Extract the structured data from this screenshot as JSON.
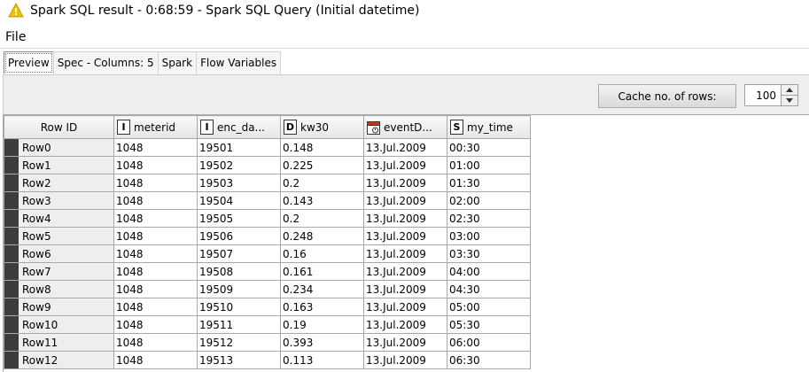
{
  "window": {
    "title": "Spark SQL result - 0:68:59 - Spark SQL Query (Initial datetime)",
    "title_icon": "warning-triangle-icon",
    "title_icon_color": "#f0c000"
  },
  "menu": {
    "file": "File"
  },
  "tabs": [
    {
      "label": "Preview",
      "active": true
    },
    {
      "label": "Spec - Columns: 5",
      "active": false
    },
    {
      "label": "Spark",
      "active": false
    },
    {
      "label": "Flow Variables",
      "active": false
    }
  ],
  "toolbar": {
    "cache_label": "Cache no. of rows:",
    "cache_value": "100"
  },
  "table": {
    "row_id_header": "Row ID",
    "columns": [
      {
        "label": "meterid",
        "type_glyph": "I",
        "type_icon": "integer-type-icon"
      },
      {
        "label": "enc_da...",
        "type_glyph": "I",
        "type_icon": "integer-type-icon"
      },
      {
        "label": "kw30",
        "type_glyph": "D",
        "type_icon": "double-type-icon"
      },
      {
        "label": "eventD...",
        "type_glyph": "",
        "type_icon": "calendar-type-icon"
      },
      {
        "label": "my_time",
        "type_glyph": "S",
        "type_icon": "string-type-icon"
      }
    ],
    "rows": [
      {
        "id": "Row0",
        "cells": [
          "1048",
          "19501",
          "0.148",
          "13.Jul.2009",
          "00:30"
        ]
      },
      {
        "id": "Row1",
        "cells": [
          "1048",
          "19502",
          "0.225",
          "13.Jul.2009",
          "01:00"
        ]
      },
      {
        "id": "Row2",
        "cells": [
          "1048",
          "19503",
          "0.2",
          "13.Jul.2009",
          "01:30"
        ]
      },
      {
        "id": "Row3",
        "cells": [
          "1048",
          "19504",
          "0.143",
          "13.Jul.2009",
          "02:00"
        ]
      },
      {
        "id": "Row4",
        "cells": [
          "1048",
          "19505",
          "0.2",
          "13.Jul.2009",
          "02:30"
        ]
      },
      {
        "id": "Row5",
        "cells": [
          "1048",
          "19506",
          "0.248",
          "13.Jul.2009",
          "03:00"
        ]
      },
      {
        "id": "Row6",
        "cells": [
          "1048",
          "19507",
          "0.16",
          "13.Jul.2009",
          "03:30"
        ]
      },
      {
        "id": "Row7",
        "cells": [
          "1048",
          "19508",
          "0.161",
          "13.Jul.2009",
          "04:00"
        ]
      },
      {
        "id": "Row8",
        "cells": [
          "1048",
          "19509",
          "0.234",
          "13.Jul.2009",
          "04:30"
        ]
      },
      {
        "id": "Row9",
        "cells": [
          "1048",
          "19510",
          "0.163",
          "13.Jul.2009",
          "05:00"
        ]
      },
      {
        "id": "Row10",
        "cells": [
          "1048",
          "19511",
          "0.19",
          "13.Jul.2009",
          "05:30"
        ]
      },
      {
        "id": "Row11",
        "cells": [
          "1048",
          "19512",
          "0.393",
          "13.Jul.2009",
          "06:00"
        ]
      },
      {
        "id": "Row12",
        "cells": [
          "1048",
          "19513",
          "0.113",
          "13.Jul.2009",
          "06:30"
        ]
      }
    ]
  }
}
